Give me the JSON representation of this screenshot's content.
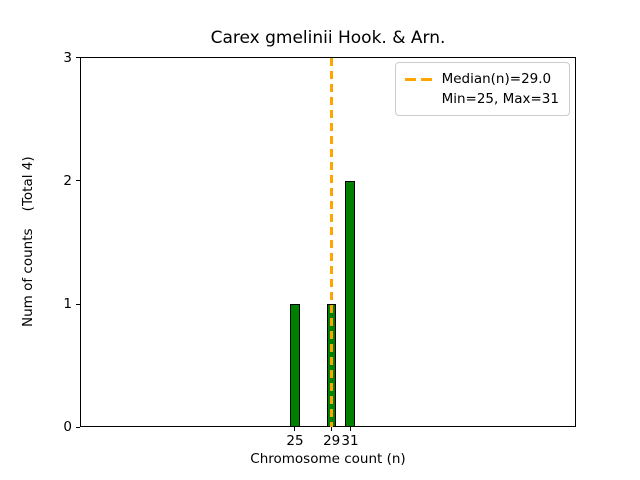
{
  "figure": {
    "background": "#ffffff"
  },
  "chart_data": {
    "type": "bar",
    "title": "Carex gmelinii Hook. & Arn.",
    "xlabel": "Chromosome count (n)",
    "ylabel": "Num of counts    (Total 4)",
    "x": [
      25,
      29,
      31
    ],
    "values": [
      1,
      1,
      2
    ],
    "bar_width": 1,
    "bar_color": "#008000",
    "bar_edge_color": "#000000",
    "median_line": {
      "x": 29.0,
      "color": "#FFA500",
      "style": "dashed",
      "label": "Median(n)=29.0"
    },
    "xlim": [
      1.55,
      55.65
    ],
    "ylim": [
      0,
      3
    ],
    "xticks": [
      25,
      29,
      31
    ],
    "yticks": [
      0,
      1,
      2,
      3
    ],
    "grid": false,
    "legend": {
      "position": "upper right",
      "entries": [
        {
          "label": "Median(n)=29.0",
          "marker": "orange-dashed-line"
        },
        {
          "label": "Min=25, Max=31",
          "marker": "none"
        }
      ]
    }
  }
}
